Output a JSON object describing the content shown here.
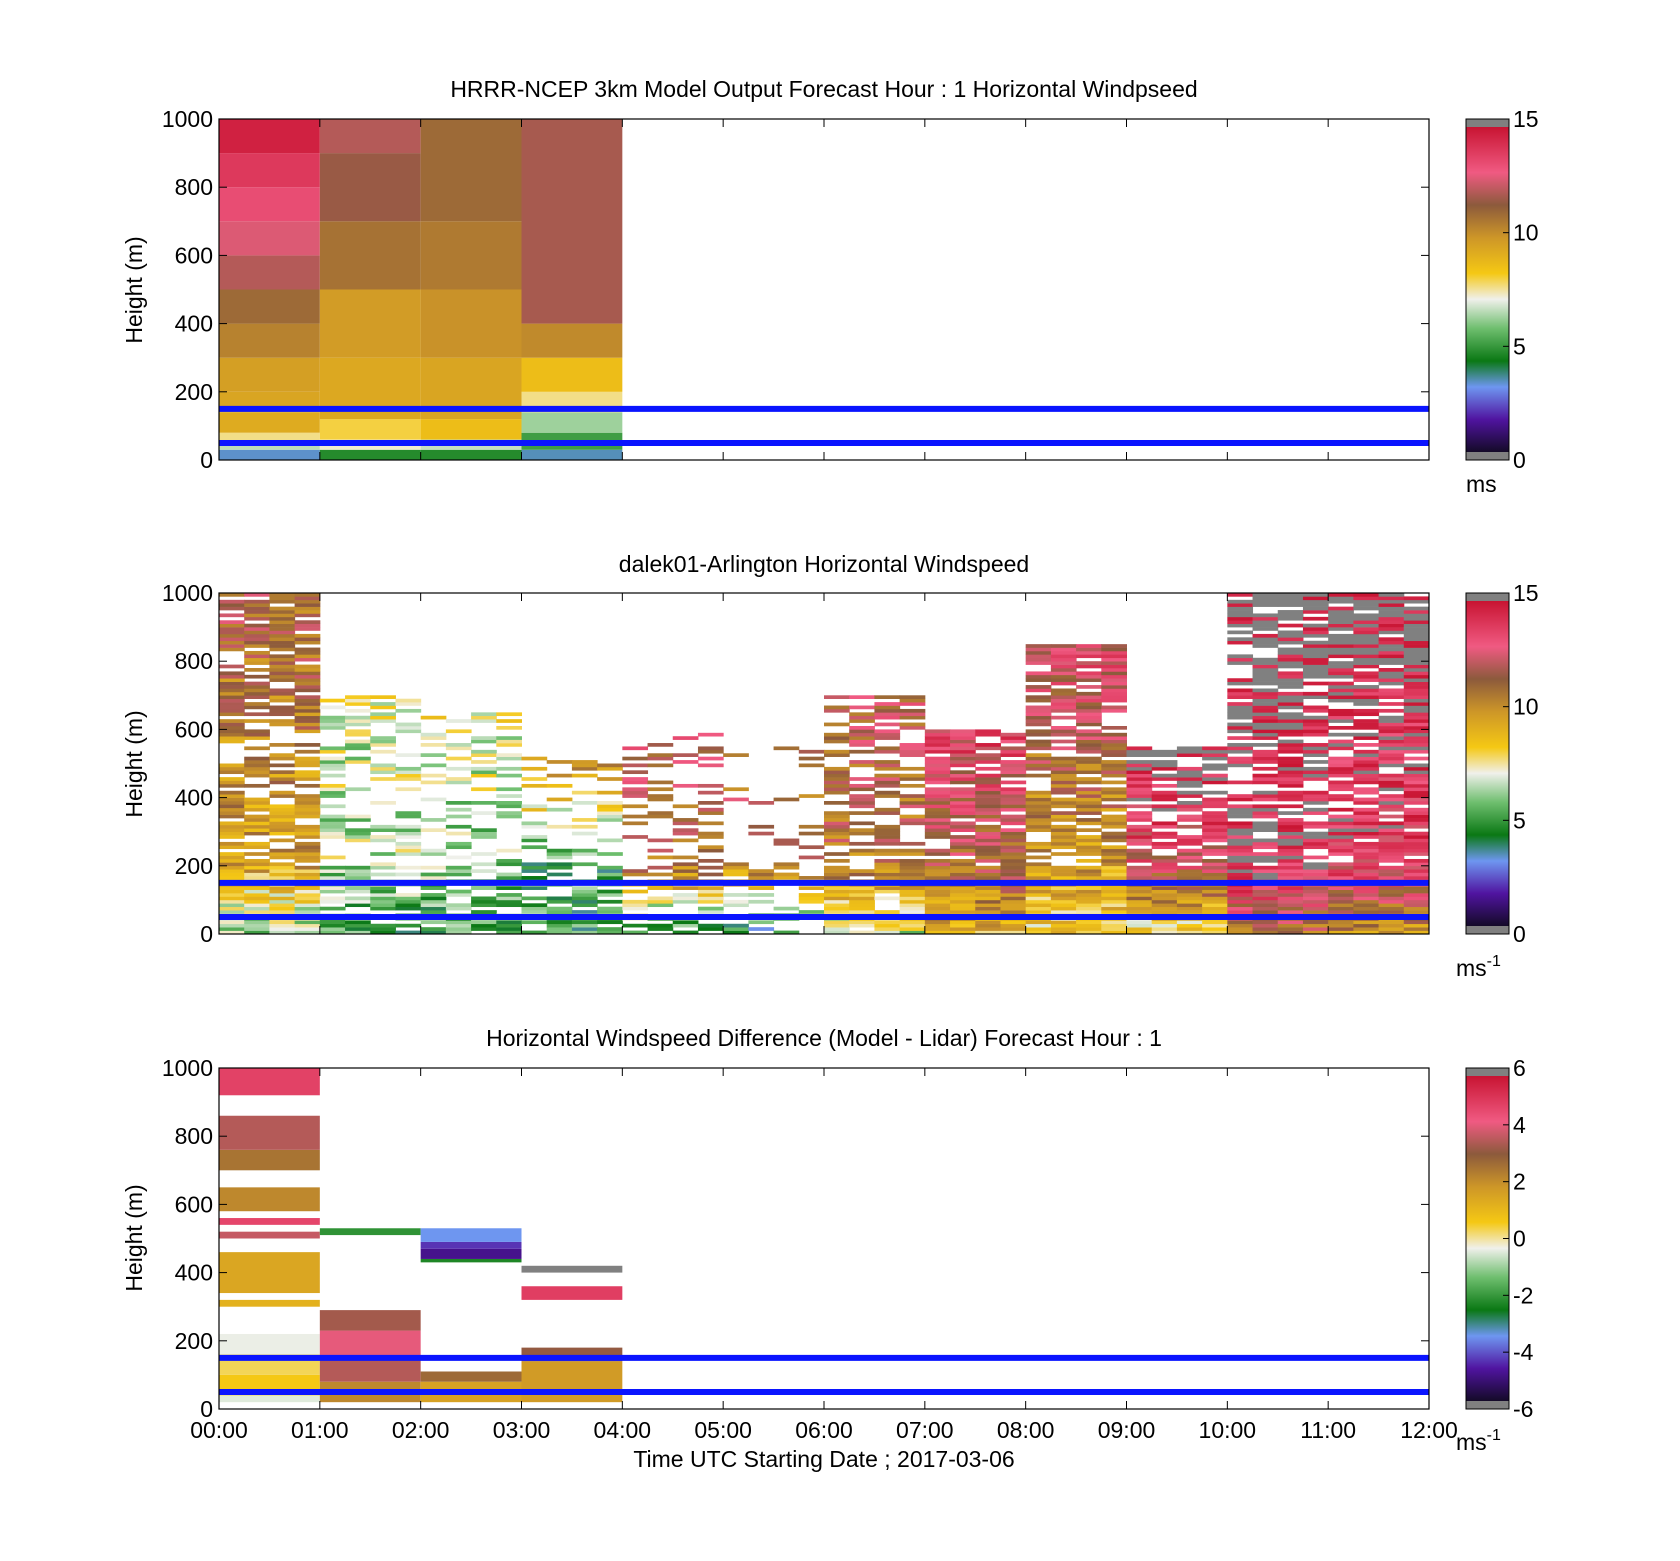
{
  "figure": {
    "xlabel": "Time UTC  Starting Date ; 2017-03-06",
    "x_tick_labels": [
      "00:00",
      "01:00",
      "02:00",
      "03:00",
      "04:00",
      "05:00",
      "06:00",
      "07:00",
      "08:00",
      "09:00",
      "10:00",
      "11:00",
      "12:00"
    ]
  },
  "reference_lines_m": [
    50,
    150
  ],
  "chart_data": [
    {
      "type": "heatmap",
      "title": "HRRR-NCEP 3km Model Output   Forecast Hour : 1 Horizontal Windpseed",
      "ylabel": "Height (m)",
      "xlabel": "",
      "xlim_hours": [
        0,
        12
      ],
      "ylim": [
        0,
        1000
      ],
      "y_ticks": [
        0,
        200,
        400,
        600,
        800,
        1000
      ],
      "colorbar": {
        "ticks": [
          0,
          5,
          10,
          15
        ],
        "lim": [
          0,
          15
        ],
        "units_label": "ms",
        "units_superscript": ""
      },
      "grid": false,
      "data_coverage_hours": [
        0,
        4
      ],
      "columns": [
        {
          "start_hour": 0,
          "end_hour": 1,
          "layers": [
            {
              "bottom": 0,
              "top": 30,
              "value": 3.2
            },
            {
              "bottom": 30,
              "top": 50,
              "value": 6.5
            },
            {
              "bottom": 50,
              "top": 80,
              "value": 7.6
            },
            {
              "bottom": 80,
              "top": 140,
              "value": 9.2
            },
            {
              "bottom": 140,
              "top": 200,
              "value": 9.4
            },
            {
              "bottom": 200,
              "top": 300,
              "value": 9.6
            },
            {
              "bottom": 300,
              "top": 400,
              "value": 10.4
            },
            {
              "bottom": 400,
              "top": 500,
              "value": 11.0
            },
            {
              "bottom": 500,
              "top": 600,
              "value": 12.0
            },
            {
              "bottom": 600,
              "top": 700,
              "value": 12.6
            },
            {
              "bottom": 700,
              "top": 800,
              "value": 13.3
            },
            {
              "bottom": 800,
              "top": 900,
              "value": 13.9
            },
            {
              "bottom": 900,
              "top": 1000,
              "value": 14.6
            }
          ]
        },
        {
          "start_hour": 1,
          "end_hour": 2,
          "layers": [
            {
              "bottom": 0,
              "top": 30,
              "value": 4.6
            },
            {
              "bottom": 30,
              "top": 60,
              "value": 7.2
            },
            {
              "bottom": 60,
              "top": 120,
              "value": 8.0
            },
            {
              "bottom": 120,
              "top": 300,
              "value": 9.3
            },
            {
              "bottom": 300,
              "top": 500,
              "value": 9.7
            },
            {
              "bottom": 500,
              "top": 700,
              "value": 10.8
            },
            {
              "bottom": 700,
              "top": 900,
              "value": 11.6
            },
            {
              "bottom": 900,
              "top": 1000,
              "value": 12.0
            }
          ]
        },
        {
          "start_hour": 2,
          "end_hour": 3,
          "layers": [
            {
              "bottom": 0,
              "top": 30,
              "value": 4.6
            },
            {
              "bottom": 30,
              "top": 60,
              "value": 6.6
            },
            {
              "bottom": 60,
              "top": 120,
              "value": 8.6
            },
            {
              "bottom": 120,
              "top": 300,
              "value": 9.4
            },
            {
              "bottom": 300,
              "top": 500,
              "value": 10.0
            },
            {
              "bottom": 500,
              "top": 700,
              "value": 10.6
            },
            {
              "bottom": 700,
              "top": 1000,
              "value": 11.0
            }
          ]
        },
        {
          "start_hour": 3,
          "end_hour": 4,
          "layers": [
            {
              "bottom": 0,
              "top": 30,
              "value": 3.3
            },
            {
              "bottom": 30,
              "top": 80,
              "value": 5.0
            },
            {
              "bottom": 80,
              "top": 140,
              "value": 6.2
            },
            {
              "bottom": 140,
              "top": 200,
              "value": 7.6
            },
            {
              "bottom": 200,
              "top": 300,
              "value": 8.6
            },
            {
              "bottom": 300,
              "top": 400,
              "value": 10.2
            },
            {
              "bottom": 400,
              "top": 1000,
              "value": 11.8
            }
          ]
        }
      ]
    },
    {
      "type": "heatmap",
      "title": "dalek01-Arlington  Horizontal Windspeed",
      "ylabel": "Height (m)",
      "xlabel": "",
      "xlim_hours": [
        0,
        12
      ],
      "ylim": [
        0,
        1000
      ],
      "y_ticks": [
        0,
        200,
        400,
        600,
        800,
        1000
      ],
      "colorbar": {
        "ticks": [
          0,
          5,
          10,
          15
        ],
        "lim": [
          0,
          15
        ],
        "units_label": "ms",
        "units_superscript": "-1"
      },
      "grid": false,
      "time_step_hours": 0.25,
      "height_bin_m": 10,
      "profiles_by_hour": [
        {
          "hour": 0,
          "low_value": 6.0,
          "mid_value": 9.5,
          "high_value": 11.5,
          "data_top_m": 1000,
          "fill_fraction": 0.75
        },
        {
          "hour": 1,
          "low_value": 5.0,
          "mid_value": 6.5,
          "high_value": 7.0,
          "data_top_m": 700,
          "fill_fraction": 0.45
        },
        {
          "hour": 2,
          "low_value": 5.0,
          "mid_value": 6.0,
          "high_value": 7.5,
          "data_top_m": 650,
          "fill_fraction": 0.35
        },
        {
          "hour": 3,
          "low_value": 4.8,
          "mid_value": 5.0,
          "high_value": 10.0,
          "data_top_m": 520,
          "fill_fraction": 0.4
        },
        {
          "hour": 4,
          "low_value": 4.5,
          "mid_value": 11.0,
          "high_value": 12.5,
          "data_top_m": 600,
          "fill_fraction": 0.3
        },
        {
          "hour": 5,
          "low_value": 4.0,
          "mid_value": 10.5,
          "high_value": 12.0,
          "data_top_m": 560,
          "fill_fraction": 0.2
        },
        {
          "hour": 6,
          "low_value": 6.5,
          "mid_value": 10.8,
          "high_value": 12.0,
          "data_top_m": 700,
          "fill_fraction": 0.55
        },
        {
          "hour": 7,
          "low_value": 9.0,
          "mid_value": 11.5,
          "high_value": 13.5,
          "data_top_m": 600,
          "fill_fraction": 0.85
        },
        {
          "hour": 8,
          "low_value": 8.0,
          "mid_value": 9.6,
          "high_value": 13.0,
          "data_top_m": 850,
          "fill_fraction": 0.8
        },
        {
          "hour": 9,
          "low_value": 7.5,
          "mid_value": 12.5,
          "high_value": 15.5,
          "data_top_m": 550,
          "fill_fraction": 0.7
        },
        {
          "hour": 10,
          "low_value": 11.0,
          "mid_value": 14.5,
          "high_value": 15.5,
          "data_top_m": 1000,
          "fill_fraction": 0.75
        },
        {
          "hour": 11,
          "low_value": 10.0,
          "mid_value": 13.5,
          "high_value": 15.5,
          "data_top_m": 1000,
          "fill_fraction": 0.85
        }
      ]
    },
    {
      "type": "heatmap",
      "title": "Horizontal Windspeed Difference (Model - Lidar) Forecast Hour : 1",
      "ylabel": "Height (m)",
      "xlabel": "Time UTC  Starting Date ; 2017-03-06",
      "xlim_hours": [
        0,
        12
      ],
      "ylim": [
        0,
        1000
      ],
      "y_ticks": [
        0,
        200,
        400,
        600,
        800,
        1000
      ],
      "colorbar": {
        "ticks": [
          -6,
          -4,
          -2,
          0,
          2,
          4,
          6
        ],
        "lim": [
          -6,
          6
        ],
        "units_label": "ms",
        "units_superscript": "-1"
      },
      "grid": false,
      "columns": [
        {
          "start_hour": 0,
          "end_hour": 1,
          "layers": [
            {
              "bottom": 20,
              "top": 40,
              "value": -0.5
            },
            {
              "bottom": 40,
              "top": 100,
              "value": 0.6
            },
            {
              "bottom": 100,
              "top": 160,
              "value": 0.3
            },
            {
              "bottom": 160,
              "top": 220,
              "value": -0.4
            },
            {
              "bottom": 300,
              "top": 320,
              "value": 1.2
            },
            {
              "bottom": 340,
              "top": 460,
              "value": 1.5
            },
            {
              "bottom": 500,
              "top": 520,
              "value": 3.8
            },
            {
              "bottom": 540,
              "top": 560,
              "value": 4.8
            },
            {
              "bottom": 580,
              "top": 650,
              "value": 2.2
            },
            {
              "bottom": 700,
              "top": 760,
              "value": 2.6
            },
            {
              "bottom": 760,
              "top": 860,
              "value": 3.6
            },
            {
              "bottom": 920,
              "top": 1000,
              "value": 4.9
            }
          ]
        },
        {
          "start_hour": 1,
          "end_hour": 2,
          "layers": [
            {
              "bottom": 20,
              "top": 80,
              "value": 2.2
            },
            {
              "bottom": 80,
              "top": 150,
              "value": 3.6
            },
            {
              "bottom": 150,
              "top": 230,
              "value": 4.2
            },
            {
              "bottom": 230,
              "top": 290,
              "value": 3.4
            },
            {
              "bottom": 510,
              "top": 530,
              "value": -2.2
            }
          ]
        },
        {
          "start_hour": 2,
          "end_hour": 3,
          "layers": [
            {
              "bottom": 20,
              "top": 80,
              "value": 1.6
            },
            {
              "bottom": 80,
              "top": 110,
              "value": 2.8
            },
            {
              "bottom": 430,
              "top": 440,
              "value": -2.4
            },
            {
              "bottom": 440,
              "top": 470,
              "value": -5.0
            },
            {
              "bottom": 470,
              "top": 490,
              "value": -4.5
            },
            {
              "bottom": 490,
              "top": 530,
              "value": -3.6
            }
          ]
        },
        {
          "start_hour": 3,
          "end_hour": 4,
          "layers": [
            {
              "bottom": 20,
              "top": 140,
              "value": 1.8
            },
            {
              "bottom": 140,
              "top": 180,
              "value": 3.2
            },
            {
              "bottom": 320,
              "top": 360,
              "value": 5.0
            },
            {
              "bottom": 400,
              "top": 420,
              "value": 6.5
            }
          ]
        }
      ]
    }
  ]
}
